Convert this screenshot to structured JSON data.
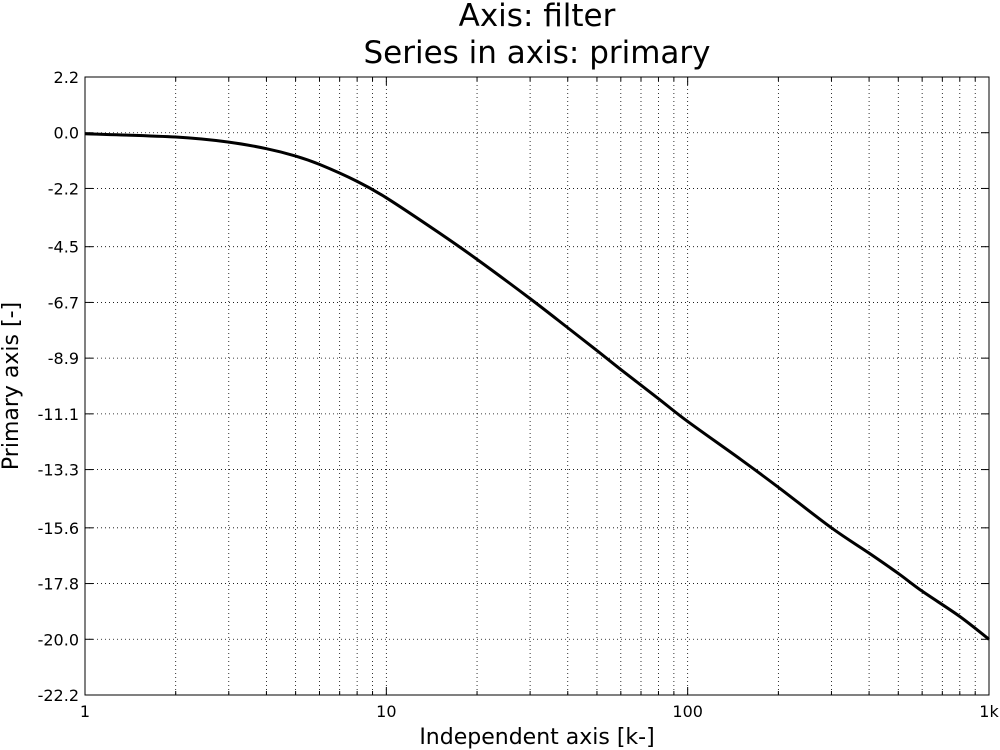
{
  "chart_data": {
    "type": "line",
    "title_line1": "Axis: filter",
    "title_line2": "Series in axis: primary",
    "xlabel": "Independent axis [k-]",
    "ylabel": "Primary axis [-]",
    "xscale": "log",
    "xlim": [
      1,
      1000
    ],
    "ylim": [
      -22.2,
      2.2
    ],
    "grid": true,
    "x_ticks": [
      {
        "value": 1,
        "label": "1"
      },
      {
        "value": 10,
        "label": "10"
      },
      {
        "value": 100,
        "label": "100"
      },
      {
        "value": 1000,
        "label": "1k"
      }
    ],
    "y_ticks": [
      {
        "value": 2.2,
        "label": "2.2"
      },
      {
        "value": 0.0,
        "label": "0.0"
      },
      {
        "value": -2.2,
        "label": "-2.2"
      },
      {
        "value": -4.5,
        "label": "-4.5"
      },
      {
        "value": -6.7,
        "label": "-6.7"
      },
      {
        "value": -8.9,
        "label": "-8.9"
      },
      {
        "value": -11.1,
        "label": "-11.1"
      },
      {
        "value": -13.3,
        "label": "-13.3"
      },
      {
        "value": -15.6,
        "label": "-15.6"
      },
      {
        "value": -17.8,
        "label": "-17.8"
      },
      {
        "value": -20.0,
        "label": "-20.0"
      },
      {
        "value": -22.2,
        "label": "-22.2"
      }
    ],
    "series": [
      {
        "color": "#000000",
        "x": [
          1,
          2,
          3,
          4,
          5,
          6,
          8,
          10,
          15,
          20,
          30,
          40,
          50,
          60,
          80,
          100,
          150,
          200,
          300,
          400,
          500,
          600,
          800,
          1000
        ],
        "y": [
          -0.04,
          -0.17,
          -0.37,
          -0.63,
          -0.92,
          -1.25,
          -1.92,
          -2.57,
          -3.96,
          -5.0,
          -6.55,
          -7.7,
          -8.6,
          -9.35,
          -10.5,
          -11.4,
          -12.9,
          -14.0,
          -15.6,
          -16.6,
          -17.4,
          -18.1,
          -19.1,
          -20.0
        ]
      }
    ]
  }
}
